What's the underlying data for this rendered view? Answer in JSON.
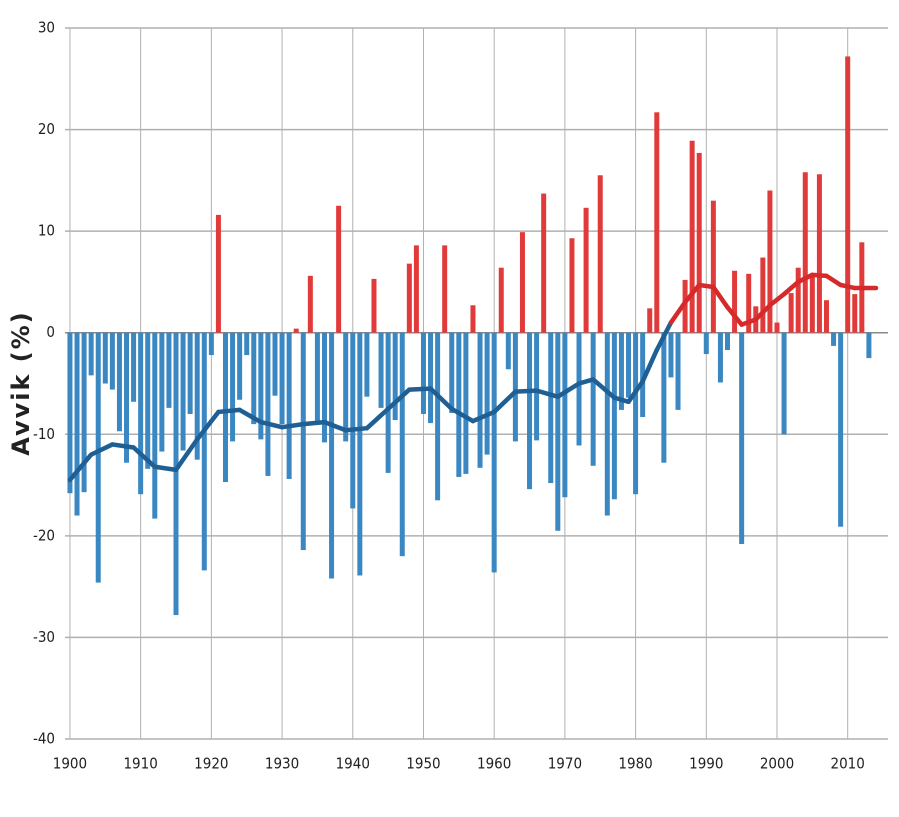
{
  "chart_data": {
    "type": "bar",
    "y_label": "Avvik (%)",
    "x": [
      1900,
      1901,
      1902,
      1903,
      1904,
      1905,
      1906,
      1907,
      1908,
      1909,
      1910,
      1911,
      1912,
      1913,
      1914,
      1915,
      1916,
      1917,
      1918,
      1919,
      1920,
      1921,
      1922,
      1923,
      1924,
      1925,
      1926,
      1927,
      1928,
      1929,
      1930,
      1931,
      1932,
      1933,
      1934,
      1935,
      1936,
      1937,
      1938,
      1939,
      1940,
      1941,
      1942,
      1943,
      1944,
      1945,
      1946,
      1947,
      1948,
      1949,
      1950,
      1951,
      1952,
      1953,
      1954,
      1955,
      1956,
      1957,
      1958,
      1959,
      1960,
      1961,
      1962,
      1963,
      1964,
      1965,
      1966,
      1967,
      1968,
      1969,
      1970,
      1971,
      1972,
      1973,
      1974,
      1975,
      1976,
      1977,
      1978,
      1979,
      1980,
      1981,
      1982,
      1983,
      1984,
      1985,
      1986,
      1987,
      1988,
      1989,
      1990,
      1991,
      1992,
      1993,
      1994,
      1995,
      1996,
      1997,
      1998,
      1999,
      2000,
      2001,
      2002,
      2003,
      2004,
      2005,
      2006,
      2007,
      2008,
      2009,
      2010,
      2011,
      2012,
      2013
    ],
    "values": [
      -15.8,
      -18,
      -15.7,
      -4.2,
      -24.6,
      -5,
      -5.6,
      -9.7,
      -12.8,
      -6.8,
      -15.9,
      -13.4,
      -18.3,
      -11.7,
      -7.4,
      -27.8,
      -11.6,
      -8,
      -12.5,
      -23.4,
      -2.2,
      11.6,
      -14.7,
      -10.7,
      -6.6,
      -2.2,
      -9,
      -10.5,
      -14.1,
      -6.2,
      -9,
      -14.4,
      0.4,
      -21.4,
      5.6,
      -9,
      -10.8,
      -24.2,
      12.5,
      -10.7,
      -17.3,
      -23.9,
      -6.3,
      5.3,
      -7.4,
      -13.8,
      -8.6,
      -22,
      6.8,
      8.6,
      -8,
      -8.9,
      -16.5,
      8.6,
      -7.9,
      -14.2,
      -13.9,
      2.7,
      -13.3,
      -12,
      -23.6,
      6.4,
      -3.6,
      -10.7,
      9.9,
      -15.4,
      -10.6,
      13.7,
      -14.8,
      -19.5,
      -16.2,
      9.3,
      -11.1,
      12.3,
      -13.1,
      15.5,
      -18,
      -16.4,
      -7.6,
      -6.4,
      -15.9,
      -8.3,
      2.4,
      21.7,
      -12.8,
      -4.4,
      -7.6,
      5.2,
      18.9,
      17.7,
      -2.1,
      13,
      -4.9,
      -1.7,
      6.1,
      -20.8,
      5.8,
      2.6,
      7.4,
      14,
      1,
      -10,
      3.9,
      6.4,
      15.8,
      5.7,
      15.6,
      3.2,
      -1.3,
      -19.1,
      27.2,
      3.8,
      8.9,
      -2.5
    ],
    "positive_color": "#e03a3a",
    "negative_color": "#3a87c2",
    "trend": {
      "x": [
        1900,
        1903,
        1906,
        1909,
        1912,
        1915,
        1918,
        1921,
        1924,
        1927,
        1930,
        1933,
        1936,
        1939,
        1942,
        1945,
        1948,
        1951,
        1954,
        1957,
        1960,
        1963,
        1966,
        1969,
        1972,
        1974,
        1977,
        1979,
        1981,
        1983,
        1985,
        1987,
        1989,
        1991,
        1993,
        1995,
        1997,
        1999,
        2001,
        2003,
        2005,
        2007,
        2009,
        2011,
        2014
      ],
      "values": [
        -14.5,
        -12,
        -11,
        -11.3,
        -13.2,
        -13.5,
        -10.5,
        -7.8,
        -7.6,
        -8.8,
        -9.3,
        -9,
        -8.8,
        -9.6,
        -9.4,
        -7.5,
        -5.6,
        -5.5,
        -7.5,
        -8.7,
        -7.8,
        -5.8,
        -5.7,
        -6.3,
        -5,
        -4.6,
        -6.4,
        -6.8,
        -4.8,
        -1.7,
        1,
        3,
        4.7,
        4.5,
        2.5,
        0.8,
        1.3,
        2.7,
        3.8,
        5,
        5.7,
        5.6,
        4.7,
        4.4,
        4.4
      ],
      "color_below": "#1f5f94",
      "color_above": "#d62a2a"
    },
    "xlim": [
      1899.3,
      2015.7
    ],
    "ylim": [
      -40,
      30
    ],
    "xticks": [
      1900,
      1910,
      1920,
      1930,
      1940,
      1950,
      1960,
      1970,
      1980,
      1990,
      2000,
      2010
    ],
    "yticks": [
      -40,
      -30,
      -20,
      -10,
      0,
      10,
      20,
      30
    ],
    "grid": true
  }
}
